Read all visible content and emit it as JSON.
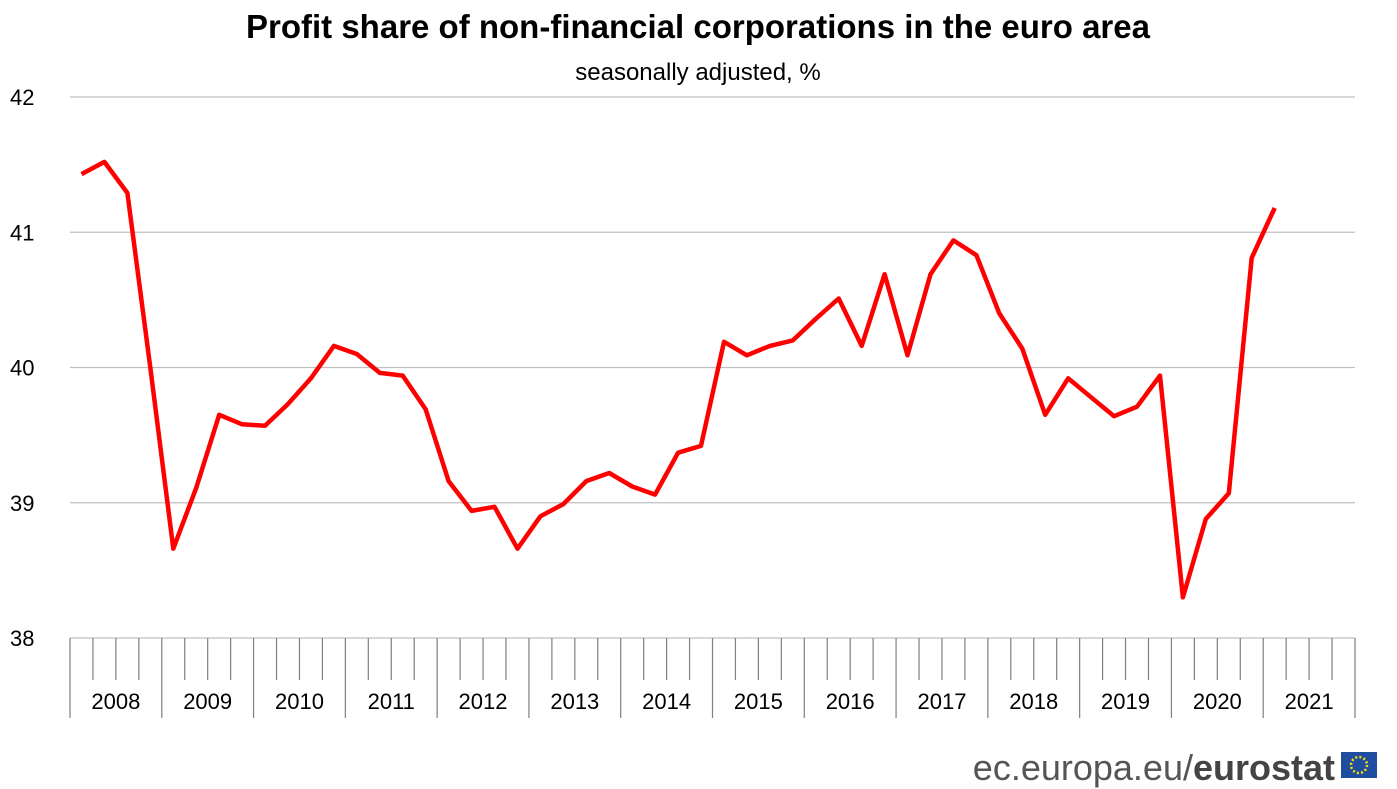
{
  "chart_data": {
    "type": "line",
    "title": "Profit share of non-financial corporations in the euro area",
    "subtitle": "seasonally adjusted, %",
    "year_groups": [
      "2008",
      "2009",
      "2010",
      "2011",
      "2012",
      "2013",
      "2014",
      "2015",
      "2016",
      "2017",
      "2018",
      "2019",
      "2020",
      "2021"
    ],
    "series": [
      {
        "name": "Profit share",
        "color": "#ff0000",
        "values": [
          41.43,
          41.52,
          41.29,
          40.0,
          38.66,
          39.11,
          39.65,
          39.58,
          39.57,
          39.73,
          39.92,
          40.16,
          40.1,
          39.96,
          39.94,
          39.69,
          39.16,
          38.94,
          38.97,
          38.66,
          38.9,
          38.99,
          39.16,
          39.22,
          39.12,
          39.06,
          39.37,
          39.42,
          40.19,
          40.09,
          40.16,
          40.2,
          40.36,
          40.51,
          40.16,
          40.69,
          40.09,
          40.69,
          40.94,
          40.83,
          40.4,
          40.14,
          39.65,
          39.92,
          39.78,
          39.64,
          39.71,
          39.94,
          38.3,
          38.88,
          39.07,
          40.81,
          41.18
        ]
      }
    ],
    "ylim": [
      38,
      42
    ],
    "yticks": [
      38,
      39,
      40,
      41,
      42
    ],
    "grid": true
  },
  "footer": {
    "site": "ec.europa.eu/",
    "brand": "eurostat"
  }
}
